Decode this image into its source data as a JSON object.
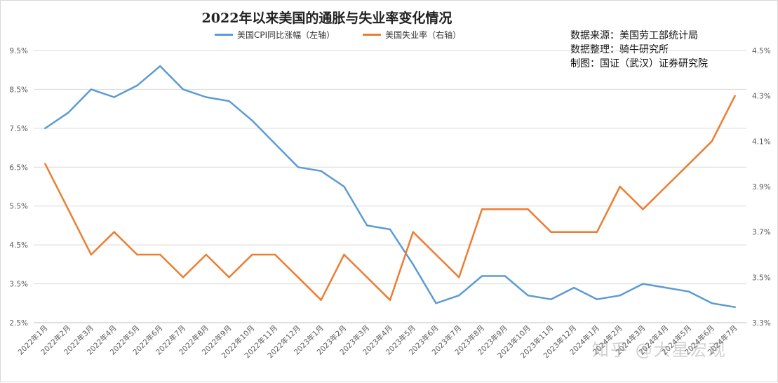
{
  "title": "2022年以来美国的通胀与失业率变化情况",
  "legend": [
    "美国CPI同比涨幅（左轴）",
    "美国失业率（右轴）"
  ],
  "notes": [
    "数据来源：美国劳工部统计局",
    "数据整理：骑牛研究所",
    "制图：国证（武汉）证券研究院"
  ],
  "watermark": "知乎 @大星宏观",
  "colors": {
    "cpi": "#5b9bd5",
    "unemployment": "#ed7d31",
    "grid": "#d9d9d9"
  },
  "chart_data": {
    "type": "line",
    "title": "2022年以来美国的通胀与失业率变化情况",
    "categories": [
      "2022年1月",
      "2022年2月",
      "2022年3月",
      "2022年4月",
      "2022年5月",
      "2022年6月",
      "2022年7月",
      "2022年8月",
      "2022年9月",
      "2022年10月",
      "2022年11月",
      "2022年12月",
      "2023年1月",
      "2023年2月",
      "2023年3月",
      "2023年4月",
      "2023年5月",
      "2023年6月",
      "2023年7月",
      "2023年8月",
      "2023年9月",
      "2023年10月",
      "2023年11月",
      "2023年12月",
      "2024年1月",
      "2024年2月",
      "2024年3月",
      "2024年4月",
      "2024年5月",
      "2024年6月",
      "2024年7月"
    ],
    "series": [
      {
        "name": "美国CPI同比涨幅（左轴）",
        "axis": "left",
        "values": [
          7.5,
          7.9,
          8.5,
          8.3,
          8.6,
          9.1,
          8.5,
          8.3,
          8.2,
          7.7,
          7.1,
          6.5,
          6.4,
          6.0,
          5.0,
          4.9,
          4.0,
          3.0,
          3.2,
          3.7,
          3.7,
          3.2,
          3.1,
          3.4,
          3.1,
          3.2,
          3.5,
          3.4,
          3.3,
          3.0,
          2.9
        ]
      },
      {
        "name": "美国失业率（右轴）",
        "axis": "right",
        "values": [
          4.0,
          3.8,
          3.6,
          3.7,
          3.6,
          3.6,
          3.5,
          3.6,
          3.5,
          3.6,
          3.6,
          3.5,
          3.4,
          3.6,
          3.5,
          3.4,
          3.7,
          3.6,
          3.5,
          3.8,
          3.8,
          3.8,
          3.7,
          3.7,
          3.7,
          3.9,
          3.8,
          3.9,
          4.0,
          4.1,
          4.3
        ]
      }
    ],
    "y_left": {
      "range": [
        2.5,
        9.5
      ],
      "ticks": [
        "2.5%",
        "3.5%",
        "4.5%",
        "5.5%",
        "6.5%",
        "7.5%",
        "8.5%",
        "9.5%"
      ]
    },
    "y_right": {
      "range": [
        3.3,
        4.5
      ],
      "ticks": [
        "3.3%",
        "3.5%",
        "3.7%",
        "3.9%",
        "4.1%",
        "4.3%",
        "4.5%"
      ]
    },
    "grid": true,
    "legend_position": "top"
  }
}
